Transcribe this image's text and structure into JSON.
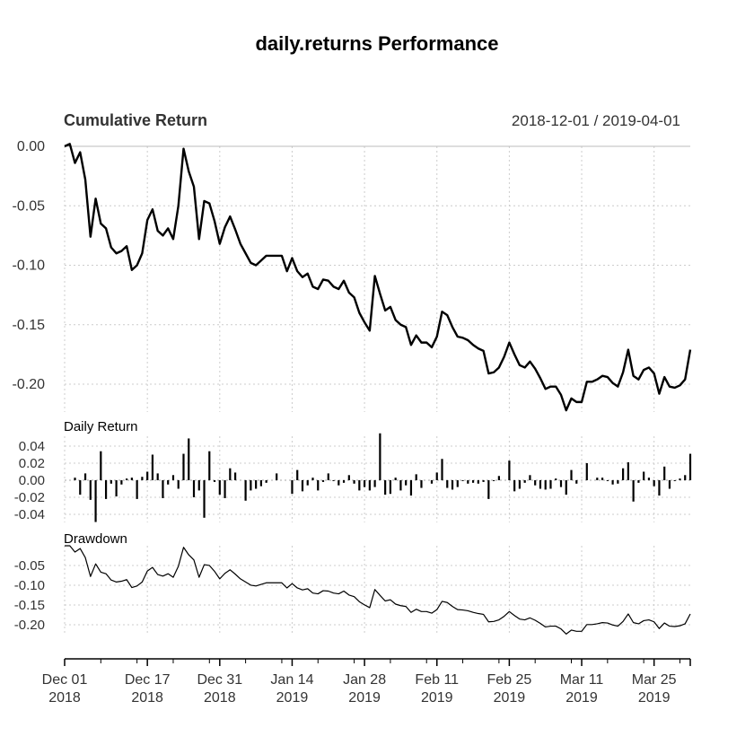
{
  "chart_data": {
    "type": "line",
    "title": "daily.returns Performance",
    "date_range": "2018-12-01 / 2019-04-01",
    "x_ticks": [
      {
        "date": "2018-12-01",
        "line1": "Dec 01",
        "line2": "2018"
      },
      {
        "date": "2018-12-17",
        "line1": "Dec 17",
        "line2": "2018"
      },
      {
        "date": "2018-12-31",
        "line1": "Dec 31",
        "line2": "2018"
      },
      {
        "date": "2019-01-14",
        "line1": "Jan 14",
        "line2": "2019"
      },
      {
        "date": "2019-01-28",
        "line1": "Jan 28",
        "line2": "2019"
      },
      {
        "date": "2019-02-11",
        "line1": "Feb 11",
        "line2": "2019"
      },
      {
        "date": "2019-02-25",
        "line1": "Feb 25",
        "line2": "2019"
      },
      {
        "date": "2019-03-11",
        "line1": "Mar 11",
        "line2": "2019"
      },
      {
        "date": "2019-03-25",
        "line1": "Mar 25",
        "line2": "2019"
      }
    ],
    "panels": [
      {
        "id": "cumulative",
        "title": "Cumulative Return",
        "type": "line",
        "ylim": [
          -0.22,
          0.0
        ],
        "y_ticks": [
          0.0,
          -0.05,
          -0.1,
          -0.15,
          -0.2
        ],
        "y_tick_labels": [
          "0.00",
          "-0.05",
          "-0.10",
          "-0.15",
          "-0.20"
        ],
        "grid": true
      },
      {
        "id": "daily",
        "title": "Daily Return",
        "type": "bar",
        "ylim": [
          -0.05,
          0.055
        ],
        "y_ticks": [
          0.04,
          0.02,
          0.0,
          -0.02,
          -0.04
        ],
        "y_tick_labels": [
          "0.04",
          "0.02",
          "0.00",
          "-0.02",
          "-0.04"
        ],
        "grid": true
      },
      {
        "id": "drawdown",
        "title": "Drawdown",
        "type": "line",
        "ylim": [
          -0.225,
          0.0
        ],
        "y_ticks": [
          -0.05,
          -0.1,
          -0.15,
          -0.2
        ],
        "y_tick_labels": [
          "-0.05",
          "-0.10",
          "-0.15",
          "-0.20"
        ],
        "grid": true
      }
    ],
    "series": {
      "cumulative_return": [
        [
          "2018-12-01",
          0.0
        ],
        [
          "2018-12-02",
          0.002
        ],
        [
          "2018-12-03",
          -0.014
        ],
        [
          "2018-12-04",
          -0.005
        ],
        [
          "2018-12-05",
          -0.028
        ],
        [
          "2018-12-06",
          -0.076
        ],
        [
          "2018-12-07",
          -0.044
        ],
        [
          "2018-12-08",
          -0.065
        ],
        [
          "2018-12-09",
          -0.069
        ],
        [
          "2018-12-10",
          -0.085
        ],
        [
          "2018-12-11",
          -0.09
        ],
        [
          "2018-12-12",
          -0.088
        ],
        [
          "2018-12-13",
          -0.084
        ],
        [
          "2018-12-14",
          -0.104
        ],
        [
          "2018-12-15",
          -0.1
        ],
        [
          "2018-12-16",
          -0.09
        ],
        [
          "2018-12-17",
          -0.062
        ],
        [
          "2018-12-18",
          -0.053
        ],
        [
          "2018-12-19",
          -0.071
        ],
        [
          "2018-12-20",
          -0.075
        ],
        [
          "2018-12-21",
          -0.069
        ],
        [
          "2018-12-22",
          -0.078
        ],
        [
          "2018-12-23",
          -0.05
        ],
        [
          "2018-12-24",
          -0.002
        ],
        [
          "2018-12-25",
          -0.021
        ],
        [
          "2018-12-26",
          -0.034
        ],
        [
          "2018-12-27",
          -0.078
        ],
        [
          "2018-12-28",
          -0.046
        ],
        [
          "2018-12-29",
          -0.048
        ],
        [
          "2018-12-30",
          -0.063
        ],
        [
          "2018-12-31",
          -0.082
        ],
        [
          "2019-01-01",
          -0.068
        ],
        [
          "2019-01-02",
          -0.059
        ],
        [
          "2019-01-03",
          -0.07
        ],
        [
          "2019-01-04",
          -0.082
        ],
        [
          "2019-01-05",
          -0.09
        ],
        [
          "2019-01-06",
          -0.098
        ],
        [
          "2019-01-07",
          -0.1
        ],
        [
          "2019-01-08",
          -0.096
        ],
        [
          "2019-01-09",
          -0.092
        ],
        [
          "2019-01-10",
          -0.092
        ],
        [
          "2019-01-11",
          -0.092
        ],
        [
          "2019-01-12",
          -0.092
        ],
        [
          "2019-01-13",
          -0.105
        ],
        [
          "2019-01-14",
          -0.094
        ],
        [
          "2019-01-15",
          -0.105
        ],
        [
          "2019-01-16",
          -0.11
        ],
        [
          "2019-01-17",
          -0.107
        ],
        [
          "2019-01-18",
          -0.118
        ],
        [
          "2019-01-19",
          -0.12
        ],
        [
          "2019-01-20",
          -0.112
        ],
        [
          "2019-01-21",
          -0.113
        ],
        [
          "2019-01-22",
          -0.118
        ],
        [
          "2019-01-23",
          -0.12
        ],
        [
          "2019-01-24",
          -0.113
        ],
        [
          "2019-01-25",
          -0.123
        ],
        [
          "2019-01-26",
          -0.127
        ],
        [
          "2019-01-27",
          -0.14
        ],
        [
          "2019-01-28",
          -0.148
        ],
        [
          "2019-01-29",
          -0.155
        ],
        [
          "2019-01-30",
          -0.109
        ],
        [
          "2019-01-31",
          -0.124
        ],
        [
          "2019-02-01",
          -0.138
        ],
        [
          "2019-02-02",
          -0.135
        ],
        [
          "2019-02-03",
          -0.146
        ],
        [
          "2019-02-04",
          -0.15
        ],
        [
          "2019-02-05",
          -0.152
        ],
        [
          "2019-02-06",
          -0.167
        ],
        [
          "2019-02-07",
          -0.159
        ],
        [
          "2019-02-08",
          -0.165
        ],
        [
          "2019-02-09",
          -0.165
        ],
        [
          "2019-02-10",
          -0.169
        ],
        [
          "2019-02-11",
          -0.16
        ],
        [
          "2019-02-12",
          -0.139
        ],
        [
          "2019-02-13",
          -0.142
        ],
        [
          "2019-02-14",
          -0.152
        ],
        [
          "2019-02-15",
          -0.16
        ],
        [
          "2019-02-16",
          -0.161
        ],
        [
          "2019-02-17",
          -0.163
        ],
        [
          "2019-02-18",
          -0.167
        ],
        [
          "2019-02-19",
          -0.17
        ],
        [
          "2019-02-20",
          -0.172
        ],
        [
          "2019-02-21",
          -0.191
        ],
        [
          "2019-02-22",
          -0.19
        ],
        [
          "2019-02-23",
          -0.186
        ],
        [
          "2019-02-24",
          -0.177
        ],
        [
          "2019-02-25",
          -0.165
        ],
        [
          "2019-02-26",
          -0.175
        ],
        [
          "2019-02-27",
          -0.184
        ],
        [
          "2019-02-28",
          -0.186
        ],
        [
          "2019-03-01",
          -0.181
        ],
        [
          "2019-03-02",
          -0.187
        ],
        [
          "2019-03-03",
          -0.195
        ],
        [
          "2019-03-04",
          -0.204
        ],
        [
          "2019-03-05",
          -0.202
        ],
        [
          "2019-03-06",
          -0.202
        ],
        [
          "2019-03-07",
          -0.209
        ],
        [
          "2019-03-08",
          -0.222
        ],
        [
          "2019-03-09",
          -0.212
        ],
        [
          "2019-03-10",
          -0.215
        ],
        [
          "2019-03-11",
          -0.215
        ],
        [
          "2019-03-12",
          -0.198
        ],
        [
          "2019-03-13",
          -0.198
        ],
        [
          "2019-03-14",
          -0.196
        ],
        [
          "2019-03-15",
          -0.193
        ],
        [
          "2019-03-16",
          -0.194
        ],
        [
          "2019-03-17",
          -0.199
        ],
        [
          "2019-03-18",
          -0.202
        ],
        [
          "2019-03-19",
          -0.19
        ],
        [
          "2019-03-20",
          -0.171
        ],
        [
          "2019-03-21",
          -0.193
        ],
        [
          "2019-03-22",
          -0.196
        ],
        [
          "2019-03-23",
          -0.188
        ],
        [
          "2019-03-24",
          -0.186
        ],
        [
          "2019-03-25",
          -0.191
        ],
        [
          "2019-03-26",
          -0.208
        ],
        [
          "2019-03-27",
          -0.194
        ],
        [
          "2019-03-28",
          -0.202
        ],
        [
          "2019-03-29",
          -0.203
        ],
        [
          "2019-03-30",
          -0.201
        ],
        [
          "2019-03-31",
          -0.196
        ],
        [
          "2019-04-01",
          -0.171
        ]
      ],
      "daily_return": [
        [
          "2018-12-03",
          0.003
        ],
        [
          "2018-12-04",
          -0.017
        ],
        [
          "2018-12-05",
          0.008
        ],
        [
          "2018-12-06",
          -0.023
        ],
        [
          "2018-12-07",
          -0.049
        ],
        [
          "2018-12-08",
          0.034
        ],
        [
          "2018-12-09",
          -0.022
        ],
        [
          "2018-12-10",
          -0.004
        ],
        [
          "2018-12-11",
          -0.019
        ],
        [
          "2018-12-12",
          -0.005
        ],
        [
          "2018-12-13",
          0.002
        ],
        [
          "2018-12-14",
          0.003
        ],
        [
          "2018-12-15",
          -0.022
        ],
        [
          "2018-12-16",
          0.004
        ],
        [
          "2018-12-17",
          0.01
        ],
        [
          "2018-12-18",
          0.03
        ],
        [
          "2018-12-19",
          0.008
        ],
        [
          "2018-12-20",
          -0.021
        ],
        [
          "2018-12-21",
          -0.005
        ],
        [
          "2018-12-22",
          0.006
        ],
        [
          "2018-12-23",
          -0.01
        ],
        [
          "2018-12-24",
          0.031
        ],
        [
          "2018-12-25",
          0.049
        ],
        [
          "2018-12-26",
          -0.02
        ],
        [
          "2018-12-27",
          -0.012
        ],
        [
          "2018-12-28",
          -0.044
        ],
        [
          "2018-12-29",
          0.034
        ],
        [
          "2018-12-30",
          -0.002
        ],
        [
          "2018-12-31",
          -0.017
        ],
        [
          "2019-01-01",
          -0.021
        ],
        [
          "2019-01-02",
          0.014
        ],
        [
          "2019-01-03",
          0.009
        ],
        [
          "2019-01-05",
          -0.024
        ],
        [
          "2019-01-06",
          -0.012
        ],
        [
          "2019-01-07",
          -0.01
        ],
        [
          "2019-01-08",
          -0.007
        ],
        [
          "2019-01-09",
          -0.003
        ],
        [
          "2019-01-11",
          0.008
        ],
        [
          "2019-01-14",
          -0.016
        ],
        [
          "2019-01-15",
          0.012
        ],
        [
          "2019-01-16",
          -0.013
        ],
        [
          "2019-01-17",
          -0.006
        ],
        [
          "2019-01-18",
          0.003
        ],
        [
          "2019-01-19",
          -0.012
        ],
        [
          "2019-01-20",
          -0.002
        ],
        [
          "2019-01-21",
          0.008
        ],
        [
          "2019-01-22",
          -0.001
        ],
        [
          "2019-01-23",
          -0.006
        ],
        [
          "2019-01-24",
          -0.003
        ],
        [
          "2019-01-25",
          0.006
        ],
        [
          "2019-01-26",
          -0.004
        ],
        [
          "2019-01-27",
          -0.012
        ],
        [
          "2019-01-28",
          -0.008
        ],
        [
          "2019-01-29",
          -0.012
        ],
        [
          "2019-01-30",
          -0.008
        ],
        [
          "2019-01-31",
          0.055
        ],
        [
          "2019-02-01",
          -0.017
        ],
        [
          "2019-02-02",
          -0.016
        ],
        [
          "2019-02-03",
          0.003
        ],
        [
          "2019-02-04",
          -0.012
        ],
        [
          "2019-02-05",
          -0.006
        ],
        [
          "2019-02-06",
          -0.018
        ],
        [
          "2019-02-07",
          0.007
        ],
        [
          "2019-02-08",
          -0.009
        ],
        [
          "2019-02-10",
          -0.004
        ],
        [
          "2019-02-11",
          0.009
        ],
        [
          "2019-02-12",
          0.025
        ],
        [
          "2019-02-13",
          -0.009
        ],
        [
          "2019-02-14",
          -0.011
        ],
        [
          "2019-02-15",
          -0.008
        ],
        [
          "2019-02-16",
          -0.001
        ],
        [
          "2019-02-17",
          -0.004
        ],
        [
          "2019-02-18",
          -0.003
        ],
        [
          "2019-02-19",
          -0.004
        ],
        [
          "2019-02-20",
          -0.002
        ],
        [
          "2019-02-21",
          -0.022
        ],
        [
          "2019-02-22",
          -0.001
        ],
        [
          "2019-02-23",
          0.005
        ],
        [
          "2019-02-25",
          0.023
        ],
        [
          "2019-02-26",
          -0.013
        ],
        [
          "2019-02-27",
          -0.01
        ],
        [
          "2019-02-28",
          -0.003
        ],
        [
          "2019-03-01",
          0.006
        ],
        [
          "2019-03-02",
          -0.006
        ],
        [
          "2019-03-03",
          -0.01
        ],
        [
          "2019-03-04",
          -0.011
        ],
        [
          "2019-03-05",
          -0.01
        ],
        [
          "2019-03-06",
          0.002
        ],
        [
          "2019-03-07",
          -0.008
        ],
        [
          "2019-03-08",
          -0.017
        ],
        [
          "2019-03-09",
          0.012
        ],
        [
          "2019-03-10",
          -0.004
        ],
        [
          "2019-03-12",
          0.02
        ],
        [
          "2019-03-14",
          0.003
        ],
        [
          "2019-03-15",
          0.003
        ],
        [
          "2019-03-16",
          -0.001
        ],
        [
          "2019-03-17",
          -0.005
        ],
        [
          "2019-03-18",
          -0.004
        ],
        [
          "2019-03-19",
          0.014
        ],
        [
          "2019-03-20",
          0.021
        ],
        [
          "2019-03-21",
          -0.025
        ],
        [
          "2019-03-22",
          -0.003
        ],
        [
          "2019-03-23",
          0.01
        ],
        [
          "2019-03-24",
          0.003
        ],
        [
          "2019-03-25",
          -0.007
        ],
        [
          "2019-03-26",
          -0.018
        ],
        [
          "2019-03-27",
          0.016
        ],
        [
          "2019-03-28",
          -0.01
        ],
        [
          "2019-03-29",
          -0.001
        ],
        [
          "2019-03-30",
          0.002
        ],
        [
          "2019-03-31",
          0.006
        ],
        [
          "2019-04-01",
          0.031
        ]
      ]
    }
  }
}
